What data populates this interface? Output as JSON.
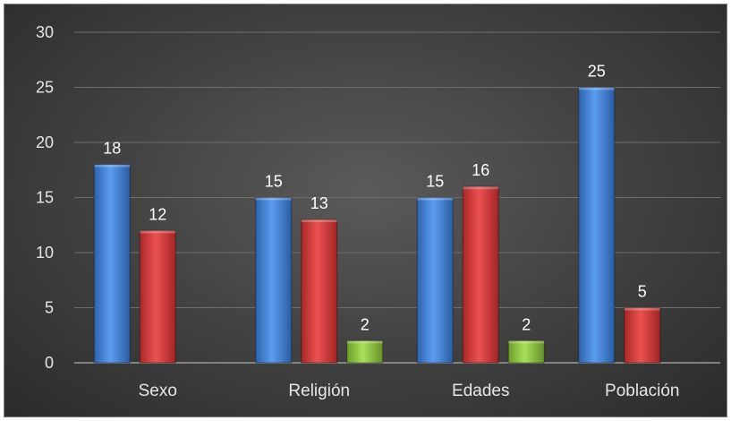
{
  "chart_data": {
    "type": "bar",
    "title": "",
    "xlabel": "",
    "ylabel": "",
    "categories": [
      "Sexo",
      "Religión",
      "Edades",
      "Población"
    ],
    "series": [
      {
        "values": [
          18,
          15,
          15,
          25
        ],
        "color": "#3f7fd6"
      },
      {
        "values": [
          12,
          13,
          16,
          5
        ],
        "color": "#d13a3a"
      },
      {
        "values": [
          null,
          2,
          2,
          null
        ],
        "color": "#8cc63f"
      }
    ],
    "ylim": [
      0,
      30
    ],
    "yticks": [
      0,
      5,
      10,
      15,
      20,
      25,
      30
    ],
    "grid": true,
    "data_labels": true,
    "legend": false
  }
}
